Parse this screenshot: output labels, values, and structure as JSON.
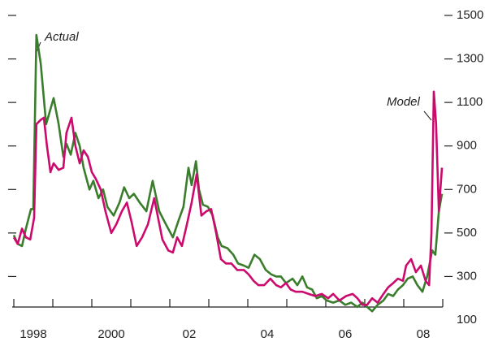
{
  "chart_data": {
    "type": "line",
    "annotations": [
      "Actual",
      "Model"
    ],
    "xlim": [
      1998,
      2009
    ],
    "xticks": [
      1998,
      1999,
      2000,
      2001,
      2002,
      2003,
      2004,
      2005,
      2006,
      2007,
      2008,
      2009
    ],
    "xtick_labels": [
      {
        "value": 1998.5,
        "label": "1998"
      },
      {
        "value": 2000.5,
        "label": "2000"
      },
      {
        "value": 2002.5,
        "label": "02"
      },
      {
        "value": 2004.5,
        "label": "04"
      },
      {
        "value": 2006.5,
        "label": "06"
      },
      {
        "value": 2008.5,
        "label": "08"
      }
    ],
    "ylim": [
      100,
      1500
    ],
    "yticks": [
      100,
      300,
      500,
      700,
      900,
      1100,
      1300,
      1500
    ],
    "series": [
      {
        "name": "Actual",
        "color": "#3a7d2c",
        "x": [
          1998.0,
          1998.1,
          1998.21,
          1998.31,
          1998.44,
          1998.5,
          1998.58,
          1998.69,
          1998.83,
          1999.02,
          1999.15,
          1999.27,
          1999.35,
          1999.46,
          1999.58,
          1999.69,
          1999.79,
          1999.94,
          2000.04,
          2000.17,
          2000.29,
          2000.4,
          2000.56,
          2000.71,
          2000.83,
          2000.96,
          2001.08,
          2001.23,
          2001.4,
          2001.56,
          2001.73,
          2001.9,
          2002.08,
          2002.23,
          2002.35,
          2002.48,
          2002.56,
          2002.67,
          2002.75,
          2002.85,
          2002.98,
          2003.1,
          2003.23,
          2003.33,
          2003.48,
          2003.63,
          2003.75,
          2003.9,
          2004.02,
          2004.17,
          2004.31,
          2004.46,
          2004.6,
          2004.73,
          2004.85,
          2004.98,
          2005.15,
          2005.27,
          2005.4,
          2005.52,
          2005.65,
          2005.77,
          2005.9,
          2006.02,
          2006.19,
          2006.35,
          2006.5,
          2006.65,
          2006.81,
          2006.94,
          2007.06,
          2007.19,
          2007.33,
          2007.48,
          2007.6,
          2007.73,
          2007.85,
          2007.98,
          2008.1,
          2008.23,
          2008.35,
          2008.48,
          2008.6,
          2008.73,
          2008.81,
          2008.9,
          2008.98
        ],
        "values": [
          490,
          450,
          440,
          520,
          610,
          610,
          1410,
          1280,
          1000,
          1120,
          1000,
          850,
          910,
          860,
          960,
          900,
          800,
          700,
          740,
          660,
          700,
          620,
          580,
          640,
          710,
          660,
          680,
          640,
          600,
          740,
          600,
          540,
          480,
          560,
          620,
          800,
          720,
          830,
          700,
          630,
          620,
          580,
          480,
          440,
          430,
          400,
          360,
          350,
          340,
          400,
          380,
          330,
          310,
          300,
          300,
          270,
          290,
          260,
          300,
          250,
          240,
          200,
          210,
          190,
          180,
          190,
          170,
          180,
          160,
          180,
          160,
          140,
          170,
          190,
          220,
          210,
          240,
          260,
          290,
          300,
          260,
          230,
          300,
          420,
          400,
          600,
          680
        ]
      },
      {
        "name": "Model",
        "color": "#cc0a6e",
        "x": [
          1998.0,
          1998.1,
          1998.21,
          1998.31,
          1998.42,
          1998.52,
          1998.58,
          1998.69,
          1998.77,
          1998.85,
          1998.94,
          1999.02,
          1999.15,
          1999.27,
          1999.35,
          1999.48,
          1999.58,
          1999.69,
          1999.79,
          1999.9,
          2000.0,
          2000.1,
          2000.23,
          2000.35,
          2000.5,
          2000.63,
          2000.77,
          2000.9,
          2001.02,
          2001.15,
          2001.29,
          2001.44,
          2001.6,
          2001.71,
          2001.81,
          2001.96,
          2002.08,
          2002.19,
          2002.31,
          2002.44,
          2002.56,
          2002.69,
          2002.81,
          2002.94,
          2003.06,
          2003.19,
          2003.31,
          2003.44,
          2003.58,
          2003.73,
          2003.9,
          2004.02,
          2004.15,
          2004.27,
          2004.42,
          2004.58,
          2004.73,
          2004.85,
          2004.98,
          2005.1,
          2005.23,
          2005.4,
          2005.56,
          2005.73,
          2005.9,
          2006.06,
          2006.19,
          2006.35,
          2006.52,
          2006.69,
          2006.81,
          2006.94,
          2007.06,
          2007.19,
          2007.33,
          2007.48,
          2007.6,
          2007.73,
          2007.85,
          2007.98,
          2008.06,
          2008.19,
          2008.31,
          2008.44,
          2008.56,
          2008.65,
          2008.71,
          2008.77,
          2008.83,
          2008.9,
          2008.98
        ],
        "values": [
          480,
          450,
          520,
          480,
          470,
          570,
          1000,
          1020,
          1030,
          900,
          780,
          820,
          790,
          800,
          960,
          1030,
          900,
          820,
          880,
          850,
          780,
          750,
          700,
          600,
          500,
          540,
          600,
          640,
          550,
          440,
          480,
          540,
          660,
          560,
          470,
          420,
          410,
          480,
          440,
          540,
          640,
          770,
          580,
          600,
          610,
          500,
          380,
          360,
          360,
          330,
          330,
          310,
          280,
          260,
          260,
          290,
          260,
          250,
          270,
          240,
          230,
          230,
          220,
          210,
          220,
          200,
          220,
          190,
          210,
          220,
          200,
          170,
          170,
          200,
          180,
          220,
          250,
          270,
          290,
          280,
          350,
          380,
          320,
          350,
          280,
          260,
          500,
          1150,
          1000,
          600,
          800
        ]
      }
    ]
  }
}
